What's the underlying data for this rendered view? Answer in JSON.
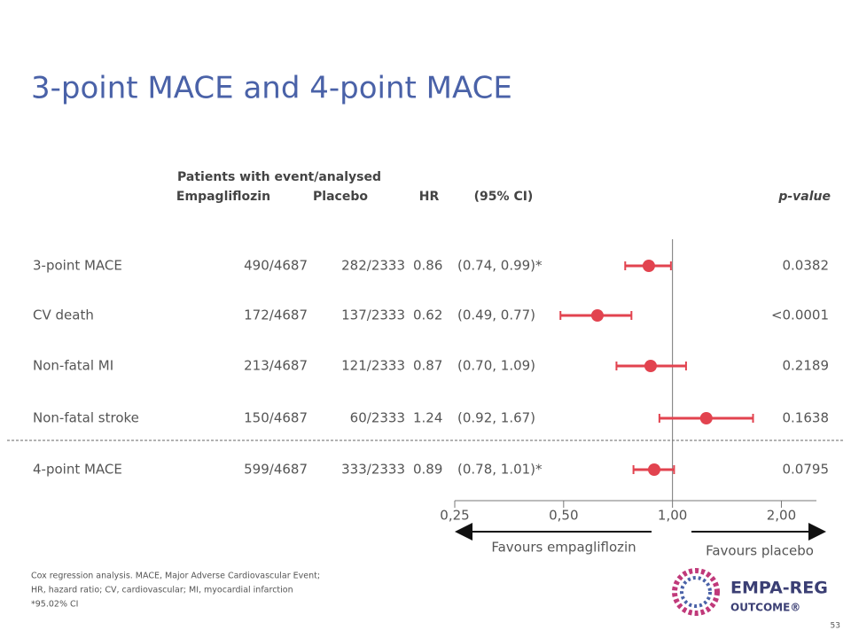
{
  "chart_data": {
    "type": "forest",
    "title": "3-point MACE and 4-point MACE",
    "header_group": "Patients with event/analysed",
    "headers": {
      "empa": "Empagliflozin",
      "placebo": "Placebo",
      "hr": "HR",
      "ci": "(95% CI)",
      "p": "p-value"
    },
    "rows": [
      {
        "label": "3-point MACE",
        "empa": "490/4687",
        "placebo": "282/2333",
        "hr": 0.86,
        "ci_low": 0.74,
        "ci_high": 0.99,
        "ci_label": "(0.74, 0.99)*",
        "p_value": "0.0382"
      },
      {
        "label": "CV death",
        "empa": "172/4687",
        "placebo": "137/2333",
        "hr": 0.62,
        "ci_low": 0.49,
        "ci_high": 0.77,
        "ci_label": "(0.49, 0.77)",
        "p_value": "<0.0001"
      },
      {
        "label": "Non-fatal MI",
        "empa": "213/4687",
        "placebo": "121/2333",
        "hr": 0.87,
        "ci_low": 0.7,
        "ci_high": 1.09,
        "ci_label": "(0.70, 1.09)",
        "p_value": "0.2189"
      },
      {
        "label": "Non-fatal stroke",
        "empa": "150/4687",
        "placebo": "60/2333",
        "hr": 1.24,
        "ci_low": 0.92,
        "ci_high": 1.67,
        "ci_label": "(0.92, 1.67)",
        "p_value": "0.1638"
      },
      {
        "label": "4-point MACE",
        "empa": "599/4687",
        "placebo": "333/2333",
        "hr": 0.89,
        "ci_low": 0.78,
        "ci_high": 1.01,
        "ci_label": "(0.78, 1.01)*",
        "p_value": "0.0795"
      }
    ],
    "log_scale": true,
    "xlim": [
      0.25,
      2.5
    ],
    "xticks": [
      {
        "value": 0.25,
        "label": "0,25"
      },
      {
        "value": 0.5,
        "label": "0,50"
      },
      {
        "value": 1,
        "label": "1,00"
      },
      {
        "value": 2,
        "label": "2,00"
      }
    ],
    "color": "#e2434f",
    "favours_left": "Favours empagliflozin",
    "favours_right": "Favours placebo"
  },
  "footnotes": [
    "Cox regression analysis. MACE, Major Adverse Cardiovascular Event;",
    "HR, hazard ratio; CV, cardiovascular; MI, myocardial infarction",
    "*95.02% CI"
  ],
  "logo": {
    "line1": "EMPA-REG",
    "line2": "OUTCOME®"
  },
  "page_number": "53"
}
